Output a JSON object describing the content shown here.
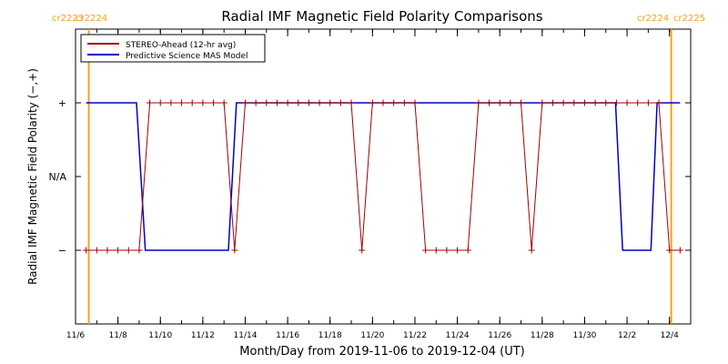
{
  "chart_data": {
    "type": "line",
    "title": "Radial IMF Magnetic Field Polarity Comparisons",
    "xlabel": "Month/Day from 2019-11-06 to 2019-12-04 (UT)",
    "ylabel": "Radial IMF Magnetic Field Polarity (−,+)",
    "x_start": "2019-11-06",
    "x_end": "2019-12-04",
    "x_ticks": [
      "11/6",
      "11/8",
      "11/10",
      "11/12",
      "11/14",
      "11/16",
      "11/18",
      "11/20",
      "11/22",
      "11/24",
      "11/26",
      "11/28",
      "11/30",
      "12/2",
      "12/4"
    ],
    "y_levels": [
      -1,
      0,
      1
    ],
    "y_tick_labels": [
      "−",
      "N/A",
      "+"
    ],
    "ylim": [
      -2,
      2
    ],
    "carrington_markers": [
      {
        "x": "2019-11-06T15:00",
        "left_label": "cr2223",
        "right_label": "cr2224"
      },
      {
        "x": "2019-12-04T02:00",
        "left_label": "cr2224",
        "right_label": "cr2225"
      }
    ],
    "series": [
      {
        "name": "STEREO-Ahead (12-hr avg)",
        "color": "#a00000",
        "marker": "plus",
        "points": [
          [
            "2019-11-06T12:00",
            -1
          ],
          [
            "2019-11-07T00:00",
            -1
          ],
          [
            "2019-11-07T12:00",
            -1
          ],
          [
            "2019-11-08T00:00",
            -1
          ],
          [
            "2019-11-08T12:00",
            -1
          ],
          [
            "2019-11-09T00:00",
            -1
          ],
          [
            "2019-11-09T12:00",
            1
          ],
          [
            "2019-11-10T00:00",
            1
          ],
          [
            "2019-11-10T12:00",
            1
          ],
          [
            "2019-11-11T00:00",
            1
          ],
          [
            "2019-11-11T12:00",
            1
          ],
          [
            "2019-11-12T00:00",
            1
          ],
          [
            "2019-11-12T12:00",
            1
          ],
          [
            "2019-11-13T00:00",
            1
          ],
          [
            "2019-11-13T12:00",
            -1
          ],
          [
            "2019-11-14T00:00",
            1
          ],
          [
            "2019-11-14T12:00",
            1
          ],
          [
            "2019-11-15T00:00",
            1
          ],
          [
            "2019-11-15T12:00",
            1
          ],
          [
            "2019-11-16T00:00",
            1
          ],
          [
            "2019-11-16T12:00",
            1
          ],
          [
            "2019-11-17T00:00",
            1
          ],
          [
            "2019-11-17T12:00",
            1
          ],
          [
            "2019-11-18T00:00",
            1
          ],
          [
            "2019-11-18T12:00",
            1
          ],
          [
            "2019-11-19T00:00",
            1
          ],
          [
            "2019-11-19T12:00",
            -1
          ],
          [
            "2019-11-20T00:00",
            1
          ],
          [
            "2019-11-20T12:00",
            1
          ],
          [
            "2019-11-21T00:00",
            1
          ],
          [
            "2019-11-21T12:00",
            1
          ],
          [
            "2019-11-22T00:00",
            1
          ],
          [
            "2019-11-22T12:00",
            -1
          ],
          [
            "2019-11-23T00:00",
            -1
          ],
          [
            "2019-11-23T12:00",
            -1
          ],
          [
            "2019-11-24T00:00",
            -1
          ],
          [
            "2019-11-24T12:00",
            -1
          ],
          [
            "2019-11-25T00:00",
            1
          ],
          [
            "2019-11-25T12:00",
            1
          ],
          [
            "2019-11-26T00:00",
            1
          ],
          [
            "2019-11-26T12:00",
            1
          ],
          [
            "2019-11-27T00:00",
            1
          ],
          [
            "2019-11-27T12:00",
            -1
          ],
          [
            "2019-11-28T00:00",
            1
          ],
          [
            "2019-11-28T12:00",
            1
          ],
          [
            "2019-11-29T00:00",
            1
          ],
          [
            "2019-11-29T12:00",
            1
          ],
          [
            "2019-11-30T00:00",
            1
          ],
          [
            "2019-11-30T12:00",
            1
          ],
          [
            "2019-12-01T00:00",
            1
          ],
          [
            "2019-12-01T12:00",
            1
          ],
          [
            "2019-12-02T00:00",
            1
          ],
          [
            "2019-12-02T12:00",
            1
          ],
          [
            "2019-12-03T00:00",
            1
          ],
          [
            "2019-12-03T12:00",
            1
          ],
          [
            "2019-12-04T00:00",
            -1
          ],
          [
            "2019-12-04T12:00",
            -1
          ]
        ]
      },
      {
        "name": "Predictive Science MAS Model",
        "color": "#0000c8",
        "marker": "none",
        "points": [
          [
            "2019-11-06T12:00",
            1
          ],
          [
            "2019-11-08T21:00",
            1
          ],
          [
            "2019-11-09T07:00",
            -1
          ],
          [
            "2019-11-13T05:00",
            -1
          ],
          [
            "2019-11-13T14:00",
            1
          ],
          [
            "2019-12-01T11:00",
            1
          ],
          [
            "2019-12-01T19:00",
            -1
          ],
          [
            "2019-12-03T03:00",
            -1
          ],
          [
            "2019-12-03T10:00",
            1
          ],
          [
            "2019-12-04T12:00",
            1
          ]
        ]
      }
    ],
    "legend_position": "top-left",
    "colors": {
      "axes": "#000000",
      "carrington": "#f5a020"
    }
  }
}
